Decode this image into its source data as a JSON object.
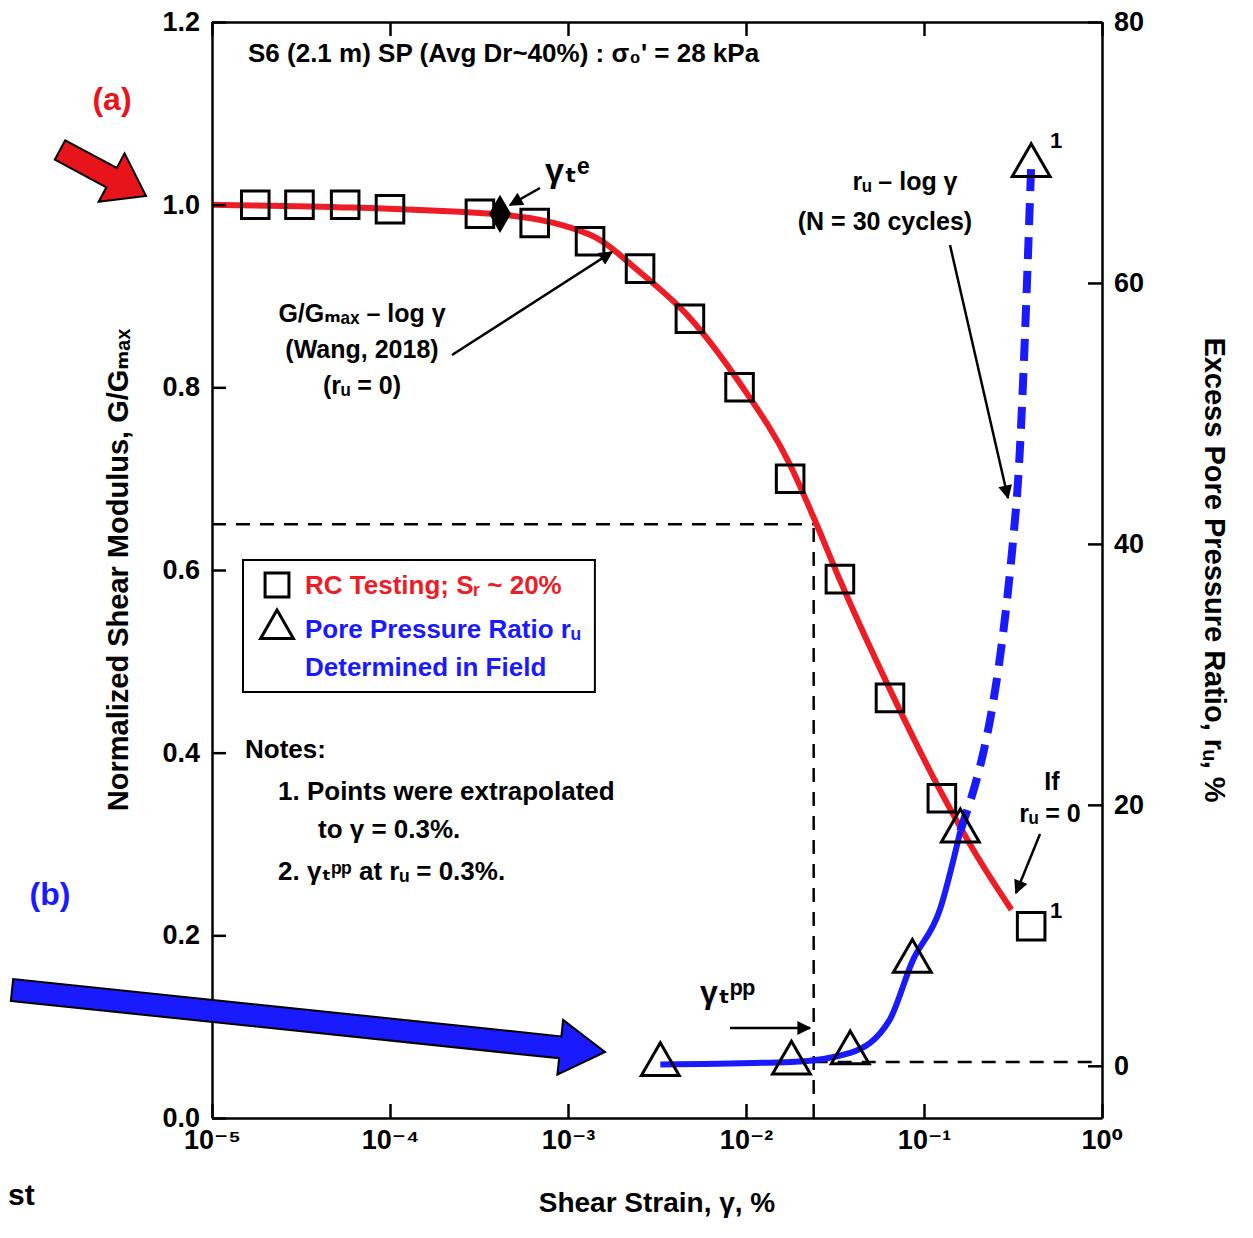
{
  "chart_data": {
    "type": "scatter",
    "title": "S6 (2.1 m) SP (Avg Dr~40%) : σ₀' = 28 kPa",
    "x_label": "Shear Strain, γ, %",
    "y_label": "Normalized Shear Modulus, G/Gₘₐₓ",
    "y2_label": "Excess Pore Pressure Ratio, rᵤ, %",
    "log": "x",
    "grid": false,
    "legend": "left",
    "xlim": [
      1e-05,
      1
    ],
    "xticks": [
      {
        "value": 1e-05,
        "label": "10⁻⁵"
      },
      {
        "value": 0.0001,
        "label": "10⁻⁴"
      },
      {
        "value": 0.001,
        "label": "10⁻³"
      },
      {
        "value": 0.01,
        "label": "10⁻²"
      },
      {
        "value": 0.1,
        "label": "10⁻¹"
      },
      {
        "value": 1,
        "label": "10⁰"
      }
    ],
    "ylim": [
      0,
      1.2
    ],
    "yticks": [
      {
        "value": 0,
        "label": "0.0"
      },
      0.2,
      0.4,
      0.6,
      0.8,
      {
        "value": 1,
        "label": "1.0"
      },
      1.2
    ],
    "y2lim": [
      -4,
      80
    ],
    "y2ticks": [
      0,
      20,
      40,
      60,
      80
    ],
    "series": [
      {
        "name": "RC Testing; Sᵣ ~ 20%",
        "type": "scatter",
        "marker": "square",
        "color": "#ee1c25",
        "x": [
          1.75e-05,
          3.1e-05,
          5.6e-05,
          0.0001,
          0.00032,
          0.00065,
          0.00133,
          0.00254,
          0.00484,
          0.0092,
          0.0177,
          0.0337,
          0.0644,
          0.126,
          0.4
        ],
        "values": [
          1.0,
          1.0,
          1.0,
          0.995,
          0.99,
          0.98,
          0.96,
          0.93,
          0.875,
          0.8,
          0.7,
          0.59,
          0.46,
          0.35,
          0.21
        ]
      },
      {
        "type": "line",
        "line_style": "solid",
        "color": "#ee1c25",
        "x": [
          1e-05,
          0.00037,
          0.00133,
          0.00254,
          0.00484,
          0.0092,
          0.0177,
          0.0243,
          0.0337,
          0.0644,
          0.123,
          0.204,
          0.31
        ],
        "values": [
          1.0,
          0.99,
          0.967,
          0.926,
          0.876,
          0.805,
          0.715,
          0.655,
          0.589,
          0.469,
          0.359,
          0.283,
          0.228
        ]
      },
      {
        "name": "Pore Pressure Ratio rᵤ Determined in Field",
        "type": "scatter",
        "marker": "triangle",
        "color": "#1a1aff",
        "axis": "y2",
        "x": [
          0.0033,
          0.018,
          0.0385,
          0.086,
          0.16,
          0.4
        ],
        "values": [
          0.1,
          0.2,
          1.0,
          8,
          18,
          69
        ]
      },
      {
        "type": "line",
        "line_style": "solid",
        "color": "#1a1aff",
        "axis": "y2",
        "x": [
          0.0033,
          0.018,
          0.0385,
          0.064,
          0.086,
          0.123,
          0.16
        ],
        "values": [
          0.1,
          0.3,
          1.0,
          3.5,
          8,
          12,
          18
        ]
      },
      {
        "type": "line",
        "line_style": "dashed",
        "color": "#1a1aff",
        "axis": "y2",
        "x": [
          0.16,
          0.33,
          0.4
        ],
        "values": [
          18,
          43,
          69
        ]
      },
      {
        "type": "scatter",
        "marker": "diamond",
        "color": "#000000",
        "x": [
          0.000415
        ],
        "values": [
          0.99
        ]
      }
    ],
    "reference_lines": {
      "x": 0.024,
      "y": 0.65,
      "y2": 0.3
    },
    "annotations": {
      "gamma_e": "γₜᵉ",
      "wang": [
        "G/Gₘₐₓ – log γ",
        "(Wang, 2018)",
        "(rᵤ = 0)"
      ],
      "ru_curve": [
        "rᵤ – log γ",
        "(N = 30 cycles)"
      ],
      "if_ru_zero": [
        "If",
        "rᵤ = 0"
      ],
      "gamma_pp": "γₜᵖᵖ",
      "footnote_marks": [
        "1",
        "1"
      ],
      "notes": [
        "Notes:",
        "1. Points were extrapolated",
        "to γ = 0.3%.",
        "2. γₜᵖᵖ at rᵤ = 0.3%."
      ],
      "panel_labels": [
        "(a)",
        "(b)"
      ],
      "fragments": [
        "st"
      ]
    }
  }
}
